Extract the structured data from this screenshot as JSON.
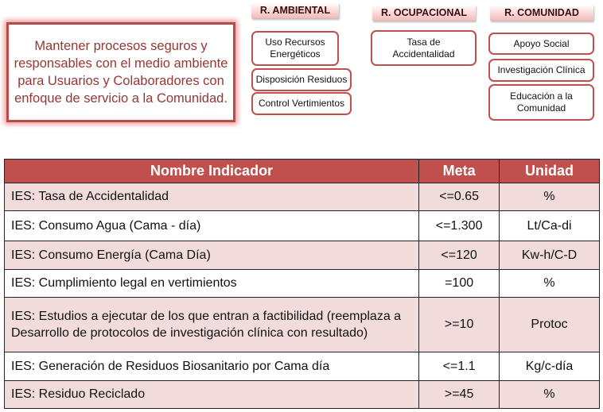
{
  "mission": "Mantener procesos seguros y responsables con el medio ambiente para  Usuarios y Colaboradores  con enfoque de servicio a la Comunidad.",
  "categories": [
    {
      "title": "R. AMBIENTAL",
      "items": [
        "Uso Recursos Energéticos",
        "Disposición Residuos",
        "Control Vertimientos"
      ]
    },
    {
      "title": "R. OCUPACIONAL",
      "items": [
        "Tasa de Accidentalidad"
      ]
    },
    {
      "title": "R. COMUNIDAD",
      "items": [
        "Apoyo Social",
        "Investigación Clínica",
        "Educación a la Comunidad"
      ]
    }
  ],
  "table": {
    "headers": [
      "Nombre Indicador",
      "Meta",
      "Unidad"
    ],
    "rows": [
      [
        "IES: Tasa de Accidentalidad",
        "<=0.65",
        "%"
      ],
      [
        "IES: Consumo Agua (Cama - día)",
        "<=1.300",
        "Lt/Ca-di"
      ],
      [
        "IES: Consumo Energía (Cama Día)",
        "<=120",
        "Kw-h/C-D"
      ],
      [
        "IES: Cumplimiento legal en vertimientos",
        "=100",
        "%"
      ],
      [
        "IES: Estudios a ejecutar de los que entran a factibilidad (reemplaza a Desarrollo de protocolos de investigación clínica con resultado)",
        ">=10",
        "Protoc"
      ],
      [
        "IES: Generación de Residuos Biosanitario por Cama día",
        "<=1.1",
        "Kg/c-día"
      ],
      [
        "IES: Residuo Reciclado",
        ">=45",
        "%"
      ]
    ]
  },
  "colors": {
    "accent": "#c0504d",
    "row_alt": "#f2dcdb",
    "mission_text": "#953735"
  }
}
